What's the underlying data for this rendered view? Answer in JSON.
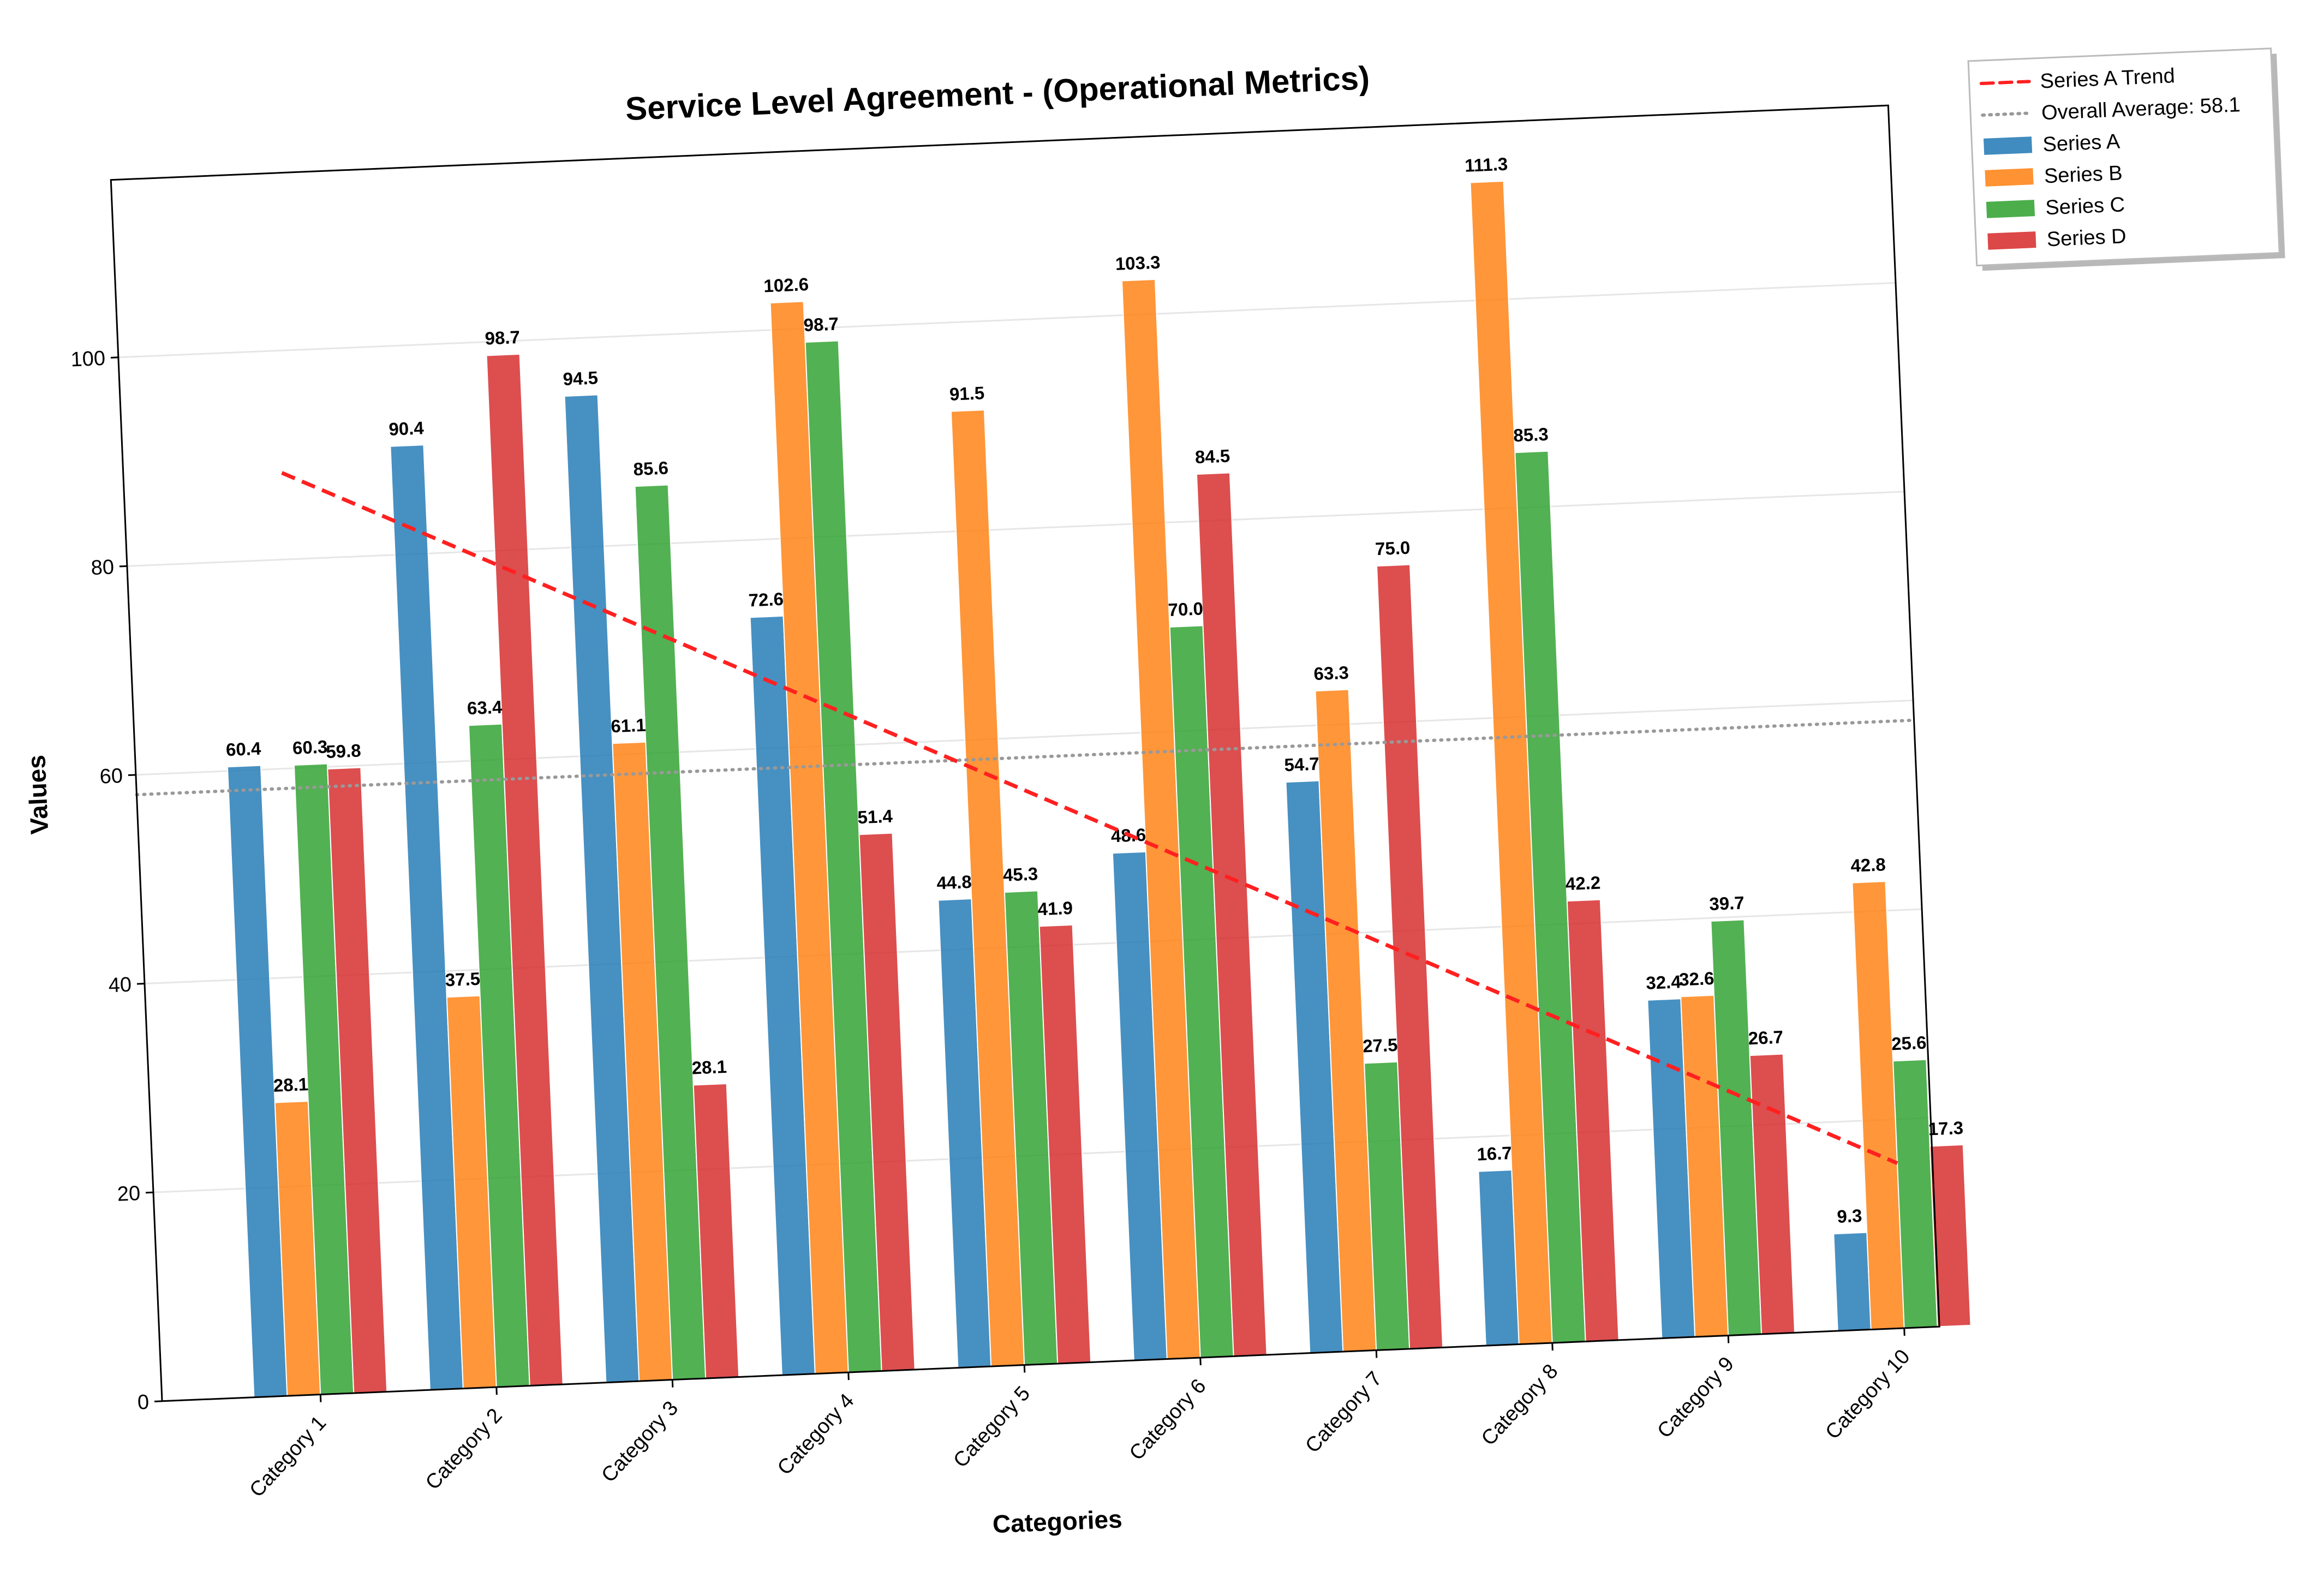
{
  "chart_data": {
    "type": "bar",
    "title": "Service Level Agreement - (Operational Metrics)",
    "xlabel": "Categories",
    "ylabel": "Values",
    "ylim": [
      0,
      117
    ],
    "yticks": [
      0,
      20,
      40,
      60,
      80,
      100
    ],
    "grid": "horizontal",
    "legend_placement": "outside-top-right",
    "categories": [
      "Category 1",
      "Category 2",
      "Category 3",
      "Category 4",
      "Category 5",
      "Category 6",
      "Category 7",
      "Category 8",
      "Category 9",
      "Category 10"
    ],
    "series": [
      {
        "name": "Series A",
        "color": "#1f77b4",
        "values": [
          60.4,
          90.4,
          94.5,
          72.6,
          44.8,
          48.6,
          54.7,
          16.7,
          32.4,
          9.3
        ]
      },
      {
        "name": "Series B",
        "color": "#ff7f0e",
        "values": [
          28.1,
          37.5,
          61.1,
          102.6,
          91.5,
          103.3,
          63.3,
          111.3,
          32.6,
          42.8
        ]
      },
      {
        "name": "Series C",
        "color": "#2ca02c",
        "values": [
          60.3,
          63.4,
          85.6,
          98.7,
          45.3,
          70.0,
          27.5,
          85.3,
          39.7,
          25.6
        ]
      },
      {
        "name": "Series D",
        "color": "#d62728",
        "values": [
          59.8,
          98.7,
          28.1,
          51.4,
          41.9,
          84.5,
          75.0,
          42.2,
          26.7,
          17.3
        ]
      }
    ],
    "trend_line": {
      "name": "Series A Trend",
      "color": "#ff2020",
      "style": "dashed",
      "start": 88.3,
      "end": 15.8
    },
    "average_line": {
      "name": "Overall Average: 58.1",
      "value": 58.1,
      "color": "#999999",
      "style": "dotted"
    }
  }
}
